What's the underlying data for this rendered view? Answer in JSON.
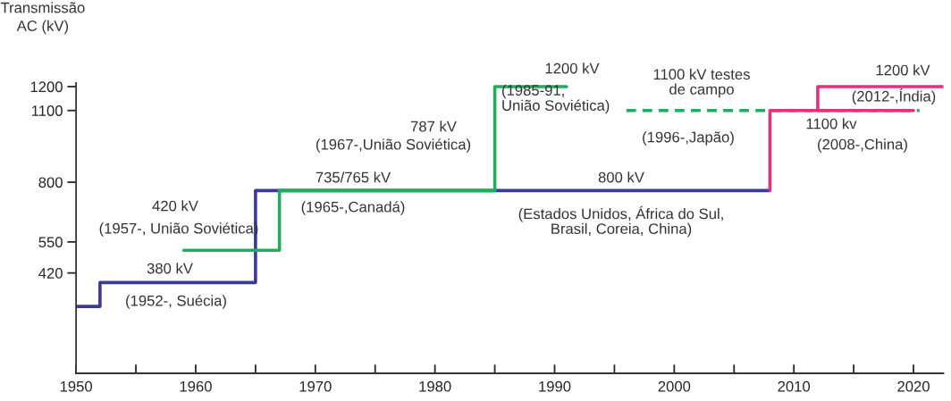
{
  "chart_data": {
    "type": "step",
    "ylabel": "Transmissão\nAC (kV)",
    "xlim": [
      1950,
      2022.5
    ],
    "ylim": [
      0,
      1215
    ],
    "xticks": [
      1950,
      {
        "value": 1955,
        "label": null
      },
      1960,
      {
        "value": 1965,
        "label": null
      },
      1970,
      {
        "value": 1975,
        "label": null
      },
      1980,
      {
        "value": 1985,
        "label": null
      },
      1990,
      {
        "value": 1995,
        "label": null
      },
      2000,
      {
        "value": 2005,
        "label": null
      },
      2010,
      {
        "value": 2015,
        "label": null
      },
      2020
    ],
    "yticks": [
      420,
      550,
      800,
      1100,
      1200
    ],
    "grid": false,
    "legend": false,
    "series": [
      {
        "color": "#3b3b96",
        "x": [
          1950,
          1952,
          1965,
          2008
        ],
        "values": [
          280,
          380,
          765,
          765
        ]
      },
      {
        "color": "#1fae5c",
        "x": [
          1959,
          1967,
          1985,
          1991
        ],
        "values": [
          515,
          765,
          1200,
          1200
        ]
      },
      {
        "color": "#1fae5c",
        "x": [
          1996,
          2020.5
        ],
        "values": [
          1100,
          1100
        ],
        "line_style": "dashed"
      },
      {
        "color": "#e3307f",
        "x": [
          2008,
          2008,
          2020
        ],
        "values": [
          765,
          1100,
          1100
        ]
      },
      {
        "color": "#e3307f",
        "x": [
          2012,
          2012,
          2022.5
        ],
        "values": [
          1100,
          1200,
          1200
        ]
      }
    ],
    "annotations": [
      "380 kV",
      "(1952-, Suécia)",
      "420 kV",
      "(1957-, União Soviética)",
      "735/765 kV",
      "(1965-,Canadá)",
      "787 kV",
      "(1967-,União Soviética)",
      "1200 kV",
      "(1985-91,\nUnião Soviética)",
      "1100 kV testes\nde campo",
      "(1996-,Japão)",
      "800 kV",
      "(Estados Unidos, África do Sul,\nBrasil, Coreia, China)",
      "1200 kV",
      "(2012-,Índia)",
      "1100 kv",
      "(2008-,China)"
    ]
  }
}
